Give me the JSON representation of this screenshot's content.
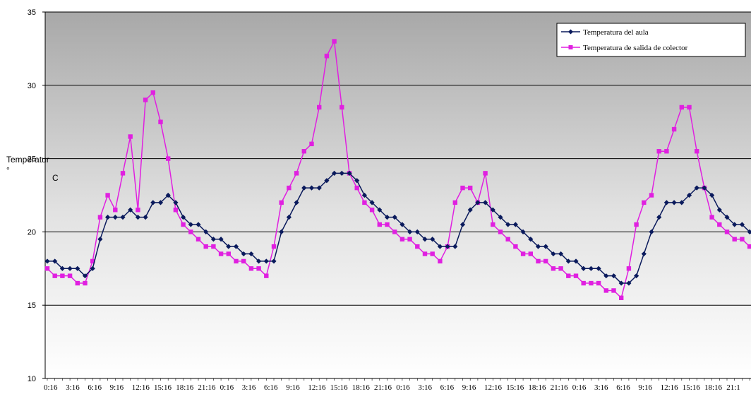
{
  "chart_data": {
    "type": "line",
    "title": "",
    "xlabel": "",
    "ylabel": "Temperatur",
    "ylabel_unit_1": "°",
    "ylabel_unit_2": "C",
    "ylim": [
      10,
      35
    ],
    "yticks": [
      10,
      15,
      20,
      25,
      30,
      35
    ],
    "grid": "horizontal",
    "legend_position": "top-right",
    "background": "gradient-gray",
    "x_tick_labels": [
      "0:16",
      "3:16",
      "6:16",
      "9:16",
      "12:16",
      "15:16",
      "18:16",
      "21:16",
      "0:16",
      "3:16",
      "6:16",
      "9:16",
      "12:16",
      "15:16",
      "18:16",
      "21:16",
      "0:16",
      "3:16",
      "6:16",
      "9:16",
      "12:16",
      "15:16",
      "18:16",
      "21:16",
      "0:16",
      "3:16",
      "6:16",
      "9:16",
      "12:16",
      "15:16",
      "18:16",
      "21:1"
    ],
    "series": [
      {
        "name": "Temperatura del aula",
        "color": "#0a1a5c",
        "marker": "diamond",
        "values": [
          18,
          18,
          17.5,
          17.5,
          17.5,
          17,
          17.5,
          19.5,
          21,
          21,
          21,
          21.5,
          21,
          21,
          22,
          22,
          22.5,
          22,
          21,
          20.5,
          20.5,
          20,
          19.5,
          19.5,
          19,
          19,
          18.5,
          18.5,
          18,
          18,
          18,
          20,
          21,
          22,
          23,
          23,
          23,
          23.5,
          24,
          24,
          24,
          23.5,
          22.5,
          22,
          21.5,
          21,
          21,
          20.5,
          20,
          20,
          19.5,
          19.5,
          19,
          19,
          19,
          20.5,
          21.5,
          22,
          22,
          21.5,
          21,
          20.5,
          20.5,
          20,
          19.5,
          19,
          19,
          18.5,
          18.5,
          18,
          18,
          17.5,
          17.5,
          17.5,
          17,
          17,
          16.5,
          16.5,
          17,
          18.5,
          20,
          21,
          22,
          22,
          22,
          22.5,
          23,
          23,
          22.5,
          21.5,
          21,
          20.5,
          20.5,
          20,
          19.5,
          19.5
        ]
      },
      {
        "name": "Temperatura de salida de colector",
        "color": "#e020e0",
        "marker": "square",
        "values": [
          17.5,
          17,
          17,
          17,
          16.5,
          16.5,
          18,
          21,
          22.5,
          21.5,
          24,
          26.5,
          21.5,
          29,
          29.5,
          27.5,
          25,
          21.5,
          20.5,
          20,
          19.5,
          19,
          19,
          18.5,
          18.5,
          18,
          18,
          17.5,
          17.5,
          17,
          19,
          22,
          23,
          24,
          25.5,
          26,
          28.5,
          32,
          33,
          28.5,
          24,
          23,
          22,
          21.5,
          20.5,
          20.5,
          20,
          19.5,
          19.5,
          19,
          18.5,
          18.5,
          18,
          19,
          22,
          23,
          23,
          22,
          24,
          20.5,
          20,
          19.5,
          19,
          18.5,
          18.5,
          18,
          18,
          17.5,
          17.5,
          17,
          17,
          16.5,
          16.5,
          16.5,
          16,
          16,
          15.5,
          17.5,
          20.5,
          22,
          22.5,
          25.5,
          25.5,
          27,
          28.5,
          28.5,
          25.5,
          23,
          21,
          20.5,
          20,
          19.5,
          19.5,
          19,
          18.5
        ]
      }
    ]
  }
}
